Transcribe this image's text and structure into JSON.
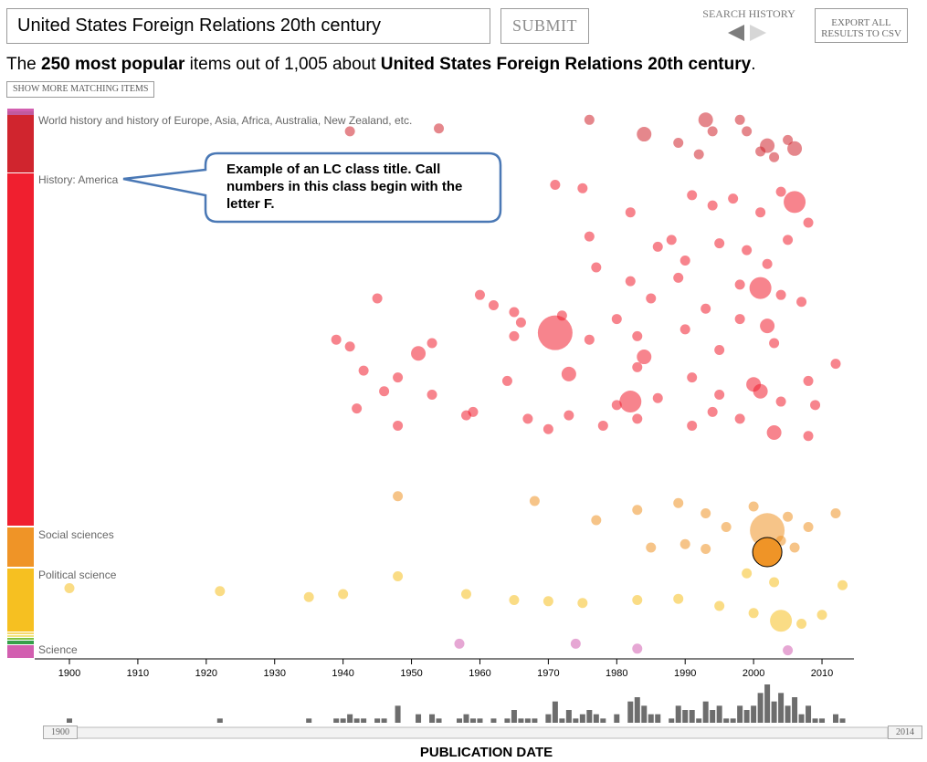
{
  "search": {
    "query": "United States Foreign Relations 20th century",
    "submit_label": "SUBMIT"
  },
  "history": {
    "label": "SEARCH HISTORY"
  },
  "export": {
    "label": "EXPORT ALL RESULTS TO CSV"
  },
  "summary": {
    "prefix": "The ",
    "count_phrase": "250 most popular",
    "middle": " items out of 1,005 about ",
    "topic": "United States Foreign Relations 20th century",
    "suffix": "."
  },
  "show_more_label": "SHOW MORE MATCHING ITEMS",
  "classes": [
    {
      "label": "World history and history of Europe, Asia, Africa, Australia, New Zealand, etc.",
      "color": "#d0252e"
    },
    {
      "label": "History: America",
      "color": "#f01f2f"
    },
    {
      "label": "Social sciences",
      "color": "#ef9427"
    },
    {
      "label": "Political science",
      "color": "#f6c021"
    },
    {
      "label": "Science",
      "color": "#d25fb0"
    }
  ],
  "callout": {
    "text": "Example of an LC class title. Call numbers in this class begin with the letter F."
  },
  "xaxis": {
    "title": "PUBLICATION DATE",
    "ticks": [
      "1900",
      "1910",
      "1920",
      "1930",
      "1940",
      "1950",
      "1960",
      "1970",
      "1980",
      "1990",
      "2000",
      "2010"
    ]
  },
  "range": {
    "start": "1900",
    "end": "2014"
  },
  "chart_data": {
    "type": "scatter",
    "xlabel": "PUBLICATION DATE",
    "xlim": [
      1900,
      2014
    ],
    "groups": [
      {
        "class": "World history and history of Europe, Asia, Africa, Australia, New Zealand, etc.",
        "color": "#d0252e",
        "points": [
          [
            1941,
            0.3,
            1
          ],
          [
            1954,
            0.25,
            1
          ],
          [
            1976,
            0.1,
            1
          ],
          [
            1984,
            0.35,
            2
          ],
          [
            1993,
            0.1,
            2
          ],
          [
            1994,
            0.3,
            1
          ],
          [
            1998,
            0.1,
            1
          ],
          [
            1999,
            0.3,
            1
          ],
          [
            2001,
            0.65,
            1
          ],
          [
            2003,
            0.75,
            1
          ],
          [
            2005,
            0.45,
            1
          ],
          [
            1992,
            0.7,
            1
          ],
          [
            2002,
            0.55,
            2
          ],
          [
            2006,
            0.6,
            2
          ],
          [
            1989,
            0.5,
            1
          ]
        ]
      },
      {
        "class": "History: America",
        "color": "#f01f2f",
        "points": [
          [
            1971,
            0.02,
            1
          ],
          [
            1975,
            0.03,
            1
          ],
          [
            1982,
            0.1,
            1
          ],
          [
            1988,
            0.18,
            1
          ],
          [
            1991,
            0.05,
            1
          ],
          [
            1994,
            0.08,
            1
          ],
          [
            1997,
            0.06,
            1
          ],
          [
            2001,
            0.1,
            1
          ],
          [
            2004,
            0.04,
            1
          ],
          [
            2006,
            0.07,
            3
          ],
          [
            2008,
            0.13,
            1
          ],
          [
            1976,
            0.17,
            1
          ],
          [
            1986,
            0.2,
            1
          ],
          [
            1990,
            0.24,
            1
          ],
          [
            1995,
            0.19,
            1
          ],
          [
            1999,
            0.21,
            1
          ],
          [
            2002,
            0.25,
            1
          ],
          [
            2005,
            0.18,
            1
          ],
          [
            1977,
            0.26,
            1
          ],
          [
            1982,
            0.3,
            1
          ],
          [
            1985,
            0.35,
            1
          ],
          [
            1989,
            0.29,
            1
          ],
          [
            1998,
            0.31,
            1
          ],
          [
            2001,
            0.32,
            3
          ],
          [
            2004,
            0.34,
            1
          ],
          [
            2007,
            0.36,
            1
          ],
          [
            1945,
            0.35,
            1
          ],
          [
            1960,
            0.34,
            1
          ],
          [
            1962,
            0.37,
            1
          ],
          [
            1965,
            0.39,
            1
          ],
          [
            1972,
            0.4,
            1
          ],
          [
            1980,
            0.41,
            1
          ],
          [
            1993,
            0.38,
            1
          ],
          [
            1966,
            0.42,
            1
          ],
          [
            1971,
            0.45,
            4
          ],
          [
            1976,
            0.47,
            1
          ],
          [
            1983,
            0.46,
            1
          ],
          [
            1990,
            0.44,
            1
          ],
          [
            1998,
            0.41,
            1
          ],
          [
            2002,
            0.43,
            2
          ],
          [
            1939,
            0.47,
            1
          ],
          [
            1941,
            0.49,
            1
          ],
          [
            1953,
            0.48,
            1
          ],
          [
            1951,
            0.51,
            2
          ],
          [
            1965,
            0.46,
            1
          ],
          [
            1984,
            0.52,
            2
          ],
          [
            1995,
            0.5,
            1
          ],
          [
            2003,
            0.48,
            1
          ],
          [
            1943,
            0.56,
            1
          ],
          [
            1948,
            0.58,
            1
          ],
          [
            1964,
            0.59,
            1
          ],
          [
            1973,
            0.57,
            2
          ],
          [
            1983,
            0.55,
            1
          ],
          [
            1991,
            0.58,
            1
          ],
          [
            2000,
            0.6,
            2
          ],
          [
            2008,
            0.59,
            1
          ],
          [
            1946,
            0.62,
            1
          ],
          [
            1953,
            0.63,
            1
          ],
          [
            1982,
            0.65,
            3
          ],
          [
            1986,
            0.64,
            1
          ],
          [
            1995,
            0.63,
            1
          ],
          [
            2001,
            0.62,
            2
          ],
          [
            2004,
            0.65,
            1
          ],
          [
            1942,
            0.67,
            1
          ],
          [
            1959,
            0.68,
            1
          ],
          [
            1967,
            0.7,
            1
          ],
          [
            1973,
            0.69,
            1
          ],
          [
            1983,
            0.7,
            1
          ],
          [
            1994,
            0.68,
            1
          ],
          [
            1998,
            0.7,
            1
          ],
          [
            2009,
            0.66,
            1
          ],
          [
            1948,
            0.72,
            1
          ],
          [
            1970,
            0.73,
            1
          ],
          [
            1978,
            0.72,
            1
          ],
          [
            1991,
            0.72,
            1
          ],
          [
            2003,
            0.74,
            2
          ],
          [
            2008,
            0.75,
            1
          ],
          [
            1958,
            0.69,
            1
          ],
          [
            1980,
            0.66,
            1
          ],
          [
            2012,
            0.54,
            1
          ]
        ]
      },
      {
        "class": "Social sciences",
        "color": "#ef9427",
        "points": [
          [
            1948,
            0.05,
            1
          ],
          [
            1968,
            0.12,
            1
          ],
          [
            1977,
            0.4,
            1
          ],
          [
            1983,
            0.25,
            1
          ],
          [
            1989,
            0.15,
            1
          ],
          [
            1993,
            0.3,
            1
          ],
          [
            1996,
            0.5,
            1
          ],
          [
            2000,
            0.2,
            1
          ],
          [
            2002,
            0.55,
            4
          ],
          [
            2005,
            0.35,
            1
          ],
          [
            2008,
            0.5,
            1
          ],
          [
            2012,
            0.3,
            1
          ],
          [
            1990,
            0.75,
            1
          ],
          [
            2006,
            0.8,
            1
          ],
          [
            1985,
            0.8,
            1
          ],
          [
            1993,
            0.82,
            1
          ],
          [
            2004,
            0.7,
            1
          ]
        ]
      },
      {
        "class": "Political science",
        "color": "#f6c021",
        "points": [
          [
            1900,
            0.3,
            1
          ],
          [
            1922,
            0.35,
            1
          ],
          [
            1935,
            0.45,
            1
          ],
          [
            1940,
            0.4,
            1
          ],
          [
            1948,
            0.1,
            1
          ],
          [
            1958,
            0.4,
            1
          ],
          [
            1965,
            0.5,
            1
          ],
          [
            1970,
            0.52,
            1
          ],
          [
            1975,
            0.55,
            1
          ],
          [
            1983,
            0.5,
            1
          ],
          [
            1989,
            0.48,
            1
          ],
          [
            1995,
            0.6,
            1
          ],
          [
            2000,
            0.72,
            1
          ],
          [
            2004,
            0.85,
            3
          ],
          [
            2007,
            0.9,
            1
          ],
          [
            2010,
            0.75,
            1
          ],
          [
            2013,
            0.25,
            1
          ],
          [
            2003,
            0.2,
            1
          ],
          [
            1999,
            0.05,
            1
          ]
        ]
      },
      {
        "class": "Science",
        "color": "#d25fb0",
        "points": [
          [
            1957,
            0.3,
            1
          ],
          [
            1974,
            0.3,
            1
          ],
          [
            1983,
            0.6,
            1
          ],
          [
            2005,
            0.7,
            1
          ]
        ]
      }
    ]
  }
}
